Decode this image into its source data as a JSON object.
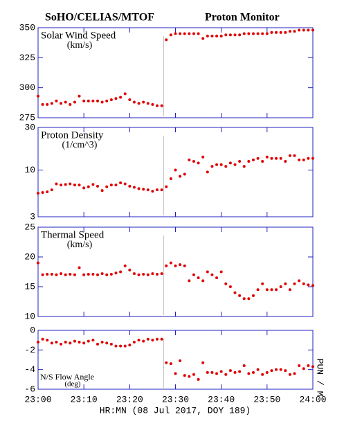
{
  "title_left": "SoHO/CELIAS/MTOF",
  "title_right": "Proton Monitor",
  "xlabel": "HR:MN (08 Jul 2017, DOY 189)",
  "side_note": "PUN / M",
  "xlim": [
    0,
    60
  ],
  "xticks": [
    {
      "value": 0,
      "label": "23:00"
    },
    {
      "value": 10,
      "label": "23:10"
    },
    {
      "value": 20,
      "label": "23:20"
    },
    {
      "value": 30,
      "label": "23:30"
    },
    {
      "value": 40,
      "label": "23:40"
    },
    {
      "value": 50,
      "label": "23:50"
    },
    {
      "value": 60,
      "label": "24:00"
    }
  ],
  "gap_x": 27.4,
  "x": [
    0,
    1,
    2,
    3,
    4,
    5,
    6,
    7,
    8,
    9,
    10,
    11,
    12,
    13,
    14,
    15,
    16,
    17,
    18,
    19,
    20,
    21,
    22,
    23,
    24,
    25,
    26,
    27,
    28,
    29,
    30,
    31,
    32,
    33,
    34,
    35,
    36,
    37,
    38,
    39,
    40,
    41,
    42,
    43,
    44,
    45,
    46,
    47,
    48,
    49,
    50,
    51,
    52,
    53,
    54,
    55,
    56,
    57,
    58,
    59,
    60
  ],
  "chart_data": [
    {
      "type": "scatter",
      "title": "Solar Wind Speed",
      "subtitle": "(km/s)",
      "color": "#e00000",
      "log": false,
      "ylim": [
        275,
        350
      ],
      "yticks": [
        275,
        300,
        325,
        350
      ],
      "values": [
        293,
        286,
        286,
        287,
        289,
        287,
        288,
        286,
        288,
        293,
        289,
        289,
        289,
        289,
        288,
        289,
        290,
        291,
        292,
        295,
        290,
        288,
        287,
        288,
        287,
        286,
        285,
        285,
        340,
        344,
        345,
        345,
        345,
        345,
        345,
        345,
        341,
        343,
        343,
        343,
        343,
        344,
        344,
        344,
        344,
        345,
        345,
        345,
        345,
        345,
        345,
        346,
        346,
        346,
        346,
        347,
        347,
        348,
        348,
        348,
        348
      ]
    },
    {
      "type": "scatter",
      "title": "Proton Density",
      "subtitle": "(1/cm^3)",
      "color": "#e00000",
      "log": true,
      "ylim": [
        3,
        30
      ],
      "yticks": [
        3,
        10,
        30
      ],
      "values": [
        5.5,
        5.6,
        5.7,
        6,
        7,
        6.8,
        6.9,
        7,
        6.8,
        6.8,
        6.3,
        6.5,
        6.9,
        6.6,
        5.9,
        6.5,
        6.8,
        6.8,
        7.2,
        7,
        6.6,
        6.4,
        6.2,
        6.1,
        6,
        5.8,
        6,
        6,
        6.5,
        8,
        10,
        8.5,
        9,
        13,
        12.5,
        12,
        14,
        9.5,
        11,
        11.5,
        11.5,
        11,
        12,
        11.5,
        12.5,
        11,
        12.5,
        13,
        13.5,
        12.5,
        14,
        13.5,
        13.5,
        13.5,
        12.5,
        14.5,
        14.5,
        13,
        13,
        13.5,
        13.5
      ]
    },
    {
      "type": "scatter",
      "title": "Thermal Speed",
      "subtitle": "(km/s)",
      "color": "#e00000",
      "log": false,
      "ylim": [
        10,
        25
      ],
      "yticks": [
        10,
        15,
        20,
        25
      ],
      "values": [
        19,
        17,
        17.1,
        17.1,
        17,
        17.2,
        17,
        17.1,
        17,
        18.2,
        17,
        17.1,
        17.1,
        17,
        17.2,
        17,
        17.1,
        17.3,
        17.5,
        18.5,
        17.8,
        17.2,
        17,
        17.1,
        17,
        17.2,
        17.1,
        17.2,
        18.5,
        19,
        18.5,
        18.7,
        18.5,
        16,
        17,
        16.5,
        16,
        17.5,
        17,
        16.5,
        17.5,
        15.5,
        15,
        14,
        13.5,
        13,
        13,
        13.5,
        14.5,
        15.5,
        14.5,
        14.5,
        14.5,
        15,
        15.5,
        14.5,
        15.5,
        16,
        15.5,
        15.3,
        15.2
      ]
    },
    {
      "type": "scatter",
      "title": "N/S Flow Angle",
      "subtitle": "(deg)",
      "color": "#e00000",
      "log": false,
      "ylim": [
        -6,
        0
      ],
      "yticks": [
        0,
        -2,
        -4,
        -6
      ],
      "values": [
        -1.2,
        -0.9,
        -1.0,
        -1.3,
        -1.2,
        -1.4,
        -1.2,
        -1.3,
        -1.1,
        -1.2,
        -1.3,
        -1.1,
        -1.0,
        -1.4,
        -1.2,
        -1.3,
        -1.4,
        -1.6,
        -1.6,
        -1.6,
        -1.5,
        -1.2,
        -1.0,
        -1.1,
        -0.9,
        -1.0,
        -0.9,
        -0.9,
        -3.3,
        -3.4,
        -4.4,
        -3.1,
        -4.6,
        -4.7,
        -4.5,
        -5.0,
        -3.3,
        -4.3,
        -4.3,
        -4.4,
        -4.2,
        -4.5,
        -4.1,
        -4.3,
        -4.2,
        -3.6,
        -4.4,
        -4.3,
        -4.0,
        -4.5,
        -4.3,
        -4.1,
        -4.0,
        -4.0,
        -4.1,
        -4.5,
        -4.4,
        -3.6,
        -3.9,
        -3.6,
        -3.7
      ]
    }
  ]
}
